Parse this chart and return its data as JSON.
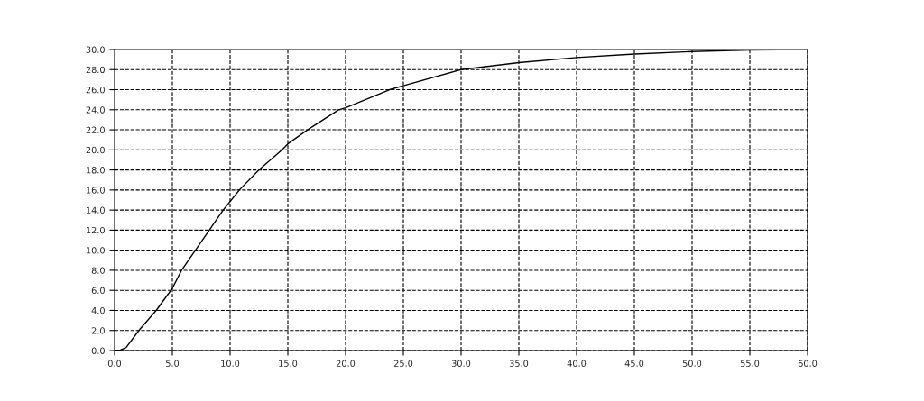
{
  "chart_data": {
    "type": "line",
    "x": [
      0,
      0.5,
      1,
      2.1,
      3.6,
      5,
      5.8,
      7,
      8.2,
      9.4,
      10.8,
      12.5,
      14.5,
      15,
      16.7,
      19.4,
      20,
      23.8,
      25,
      30,
      35,
      40,
      45,
      50,
      55,
      60
    ],
    "series": [
      {
        "color": "#000000",
        "values": [
          0,
          0.05,
          0.3,
          2,
          4,
          6.2,
          8,
          10,
          12,
          14,
          16,
          18,
          20,
          20.6,
          22,
          24,
          24.2,
          26,
          26.4,
          28,
          28.7,
          29.2,
          29.55,
          29.8,
          29.95,
          30
        ]
      }
    ],
    "xlim": [
      0,
      60
    ],
    "ylim": [
      0,
      30
    ],
    "xticks": [
      {
        "value": 0,
        "label": "0.0"
      },
      {
        "value": 5,
        "label": "5.0"
      },
      {
        "value": 10,
        "label": "10.0"
      },
      {
        "value": 15,
        "label": "15.0"
      },
      {
        "value": 20,
        "label": "20.0"
      },
      {
        "value": 25,
        "label": "25.0"
      },
      {
        "value": 30,
        "label": "30.0"
      },
      {
        "value": 35,
        "label": "35.0"
      },
      {
        "value": 40,
        "label": "40.0"
      },
      {
        "value": 45,
        "label": "45.0"
      },
      {
        "value": 50,
        "label": "50.0"
      },
      {
        "value": 55,
        "label": "55.0"
      },
      {
        "value": 60,
        "label": "60.0"
      }
    ],
    "yticks": [
      {
        "value": 0,
        "label": "0.0"
      },
      {
        "value": 2,
        "label": "2.0"
      },
      {
        "value": 4,
        "label": "4.0"
      },
      {
        "value": 6,
        "label": "6.0"
      },
      {
        "value": 8,
        "label": "8.0"
      },
      {
        "value": 10,
        "label": "10.0"
      },
      {
        "value": 12,
        "label": "12.0"
      },
      {
        "value": 14,
        "label": "14.0"
      },
      {
        "value": 16,
        "label": "16.0"
      },
      {
        "value": 18,
        "label": "18.0"
      },
      {
        "value": 20,
        "label": "20.0"
      },
      {
        "value": 22,
        "label": "22.0"
      },
      {
        "value": 24,
        "label": "24.0"
      },
      {
        "value": 26,
        "label": "26.0"
      },
      {
        "value": 28,
        "label": "28.0"
      },
      {
        "value": 30,
        "label": "30.0"
      }
    ],
    "grid": true,
    "line_style": "solid"
  }
}
